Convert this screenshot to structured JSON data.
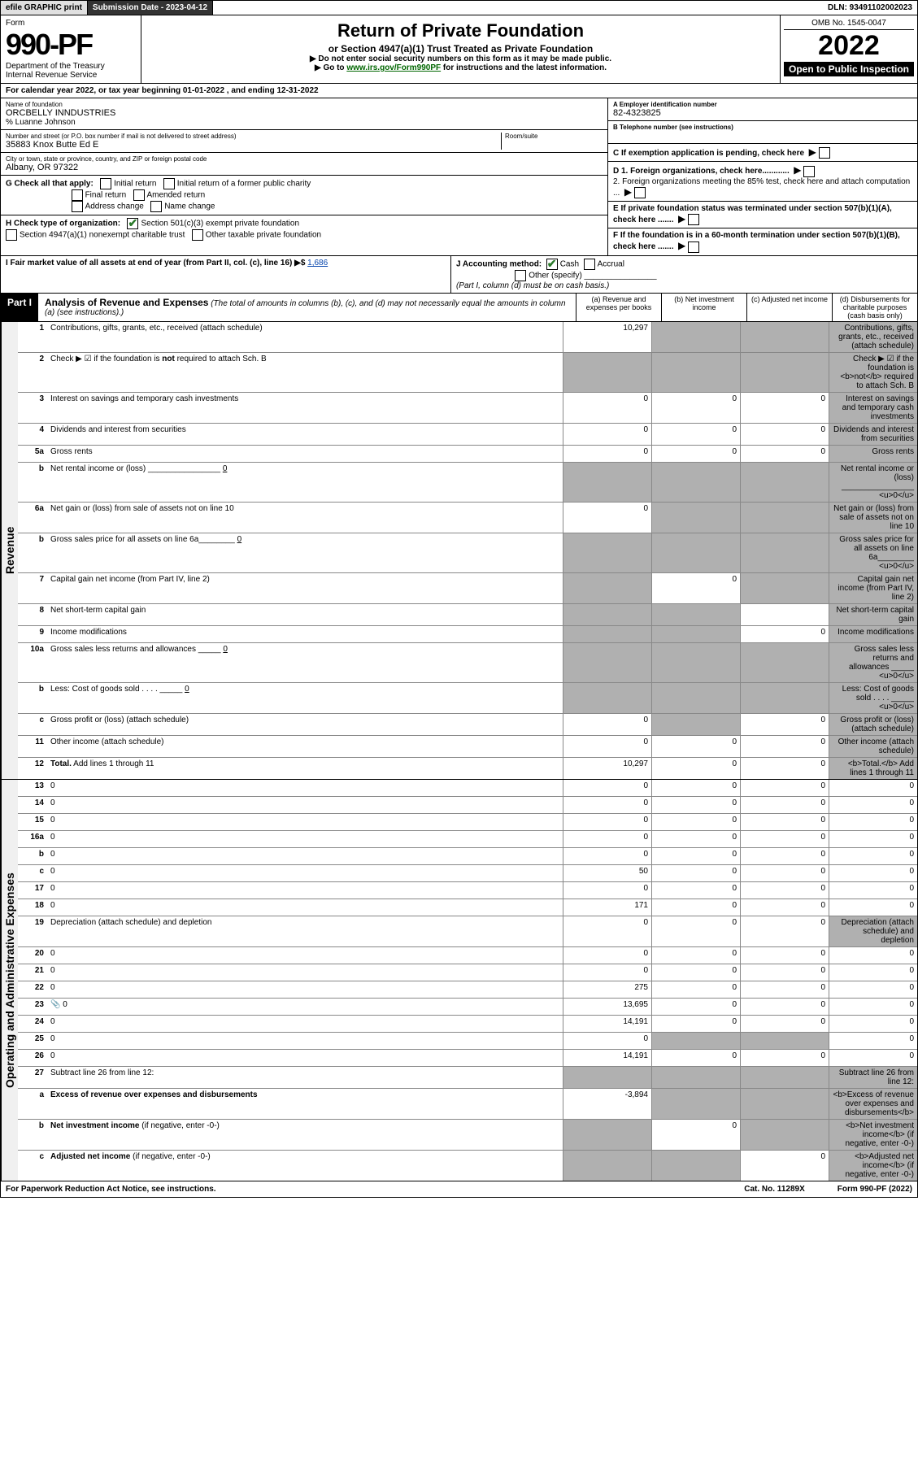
{
  "topbar": {
    "efile": "efile GRAPHIC print",
    "subdate_label": "Submission Date - ",
    "subdate": "2023-04-12",
    "dln": "DLN: 93491102002023"
  },
  "header": {
    "form_label": "Form",
    "form_no": "990-PF",
    "dept": "Department of the Treasury",
    "irs": "Internal Revenue Service",
    "title": "Return of Private Foundation",
    "subtitle": "or Section 4947(a)(1) Trust Treated as Private Foundation",
    "note1": "▶ Do not enter social security numbers on this form as it may be made public.",
    "note2_pre": "▶ Go to ",
    "note2_link": "www.irs.gov/Form990PF",
    "note2_post": " for instructions and the latest information.",
    "omb": "OMB No. 1545-0047",
    "year": "2022",
    "open": "Open to Public Inspection"
  },
  "calyear": "For calendar year 2022, or tax year beginning 01-01-2022             , and ending 12-31-2022",
  "id": {
    "name_lbl": "Name of foundation",
    "name": "ORCBELLY INNDUSTRIES",
    "care": "% Luanne Johnson",
    "addr_lbl": "Number and street (or P.O. box number if mail is not delivered to street address)",
    "addr": "35883 Knox Butte Ed E",
    "room_lbl": "Room/suite",
    "room": "",
    "city_lbl": "City or town, state or province, country, and ZIP or foreign postal code",
    "city": "Albany, OR  97322",
    "ein_lbl": "A Employer identification number",
    "ein": "82-4323825",
    "tel_lbl": "B Telephone number (see instructions)",
    "tel": "",
    "c": "C If exemption application is pending, check here",
    "d1": "D 1. Foreign organizations, check here............",
    "d2": "2. Foreign organizations meeting the 85% test, check here and attach computation ...",
    "e": "E  If private foundation status was terminated under section 507(b)(1)(A), check here .......",
    "f": "F  If the foundation is in a 60-month termination under section 507(b)(1)(B), check here ......."
  },
  "g": {
    "label": "G Check all that apply:",
    "initial": "Initial return",
    "initial_former": "Initial return of a former public charity",
    "final": "Final return",
    "amended": "Amended return",
    "addrchg": "Address change",
    "namechg": "Name change"
  },
  "h": {
    "label": "H Check type of organization:",
    "c3": "Section 501(c)(3) exempt private foundation",
    "c4947": "Section 4947(a)(1) nonexempt charitable trust",
    "other": "Other taxable private foundation"
  },
  "i": {
    "label": "I Fair market value of all assets at end of year (from Part II, col. (c), line 16) ▶$ ",
    "val": "1,686"
  },
  "j": {
    "label": "J Accounting method:",
    "cash": "Cash",
    "accrual": "Accrual",
    "other": "Other (specify)",
    "note": "(Part I, column (d) must be on cash basis.)"
  },
  "part1": {
    "tag": "Part I",
    "title": "Analysis of Revenue and Expenses",
    "note": "(The total of amounts in columns (b), (c), and (d) may not necessarily equal the amounts in column (a) (see instructions).)",
    "cola": "(a)   Revenue and expenses per books",
    "colb": "(b)   Net investment income",
    "colc": "(c)   Adjusted net income",
    "cold": "(d)   Disbursements for charitable purposes (cash basis only)"
  },
  "rev": [
    {
      "n": "1",
      "d": "Contributions, gifts, grants, etc., received (attach schedule)",
      "a": "10,297",
      "grey": [
        "b",
        "c",
        "d"
      ]
    },
    {
      "n": "2",
      "d": "Check ▶ ☑ if the foundation is <b>not</b> required to attach Sch. B",
      "grey": [
        "a",
        "b",
        "c",
        "d"
      ]
    },
    {
      "n": "3",
      "d": "Interest on savings and temporary cash investments",
      "a": "0",
      "b": "0",
      "c": "0",
      "grey": [
        "d"
      ]
    },
    {
      "n": "4",
      "d": "Dividends and interest from securities",
      "a": "0",
      "b": "0",
      "c": "0",
      "grey": [
        "d"
      ]
    },
    {
      "n": "5a",
      "d": "Gross rents",
      "a": "0",
      "b": "0",
      "c": "0",
      "grey": [
        "d"
      ]
    },
    {
      "n": "b",
      "d": "Net rental income or (loss) ________________ <u>0</u>",
      "grey": [
        "a",
        "b",
        "c",
        "d"
      ]
    },
    {
      "n": "6a",
      "d": "Net gain or (loss) from sale of assets not on line 10",
      "a": "0",
      "grey": [
        "b",
        "c",
        "d"
      ]
    },
    {
      "n": "b",
      "d": "Gross sales price for all assets on line 6a________ <u>0</u>",
      "grey": [
        "a",
        "b",
        "c",
        "d"
      ]
    },
    {
      "n": "7",
      "d": "Capital gain net income (from Part IV, line 2)",
      "b": "0",
      "grey": [
        "a",
        "c",
        "d"
      ]
    },
    {
      "n": "8",
      "d": "Net short-term capital gain",
      "grey": [
        "a",
        "b",
        "d"
      ]
    },
    {
      "n": "9",
      "d": "Income modifications",
      "c": "0",
      "grey": [
        "a",
        "b",
        "d"
      ]
    },
    {
      "n": "10a",
      "d": "Gross sales less returns and allowances _____ <u>0</u>",
      "grey": [
        "a",
        "b",
        "c",
        "d"
      ]
    },
    {
      "n": "b",
      "d": "Less: Cost of goods sold  .  .  .  . _____ <u>0</u>",
      "grey": [
        "a",
        "b",
        "c",
        "d"
      ]
    },
    {
      "n": "c",
      "d": "Gross profit or (loss) (attach schedule)",
      "a": "0",
      "c": "0",
      "grey": [
        "b",
        "d"
      ]
    },
    {
      "n": "11",
      "d": "Other income (attach schedule)",
      "a": "0",
      "b": "0",
      "c": "0",
      "grey": [
        "d"
      ]
    },
    {
      "n": "12",
      "d": "<b>Total.</b> Add lines 1 through 11",
      "a": "10,297",
      "b": "0",
      "c": "0",
      "grey": [
        "d"
      ]
    }
  ],
  "exp": [
    {
      "n": "13",
      "d": "0",
      "a": "0",
      "b": "0",
      "c": "0"
    },
    {
      "n": "14",
      "d": "0",
      "a": "0",
      "b": "0",
      "c": "0"
    },
    {
      "n": "15",
      "d": "0",
      "a": "0",
      "b": "0",
      "c": "0"
    },
    {
      "n": "16a",
      "d": "0",
      "a": "0",
      "b": "0",
      "c": "0"
    },
    {
      "n": "b",
      "d": "0",
      "a": "0",
      "b": "0",
      "c": "0"
    },
    {
      "n": "c",
      "d": "0",
      "a": "50",
      "b": "0",
      "c": "0"
    },
    {
      "n": "17",
      "d": "0",
      "a": "0",
      "b": "0",
      "c": "0"
    },
    {
      "n": "18",
      "d": "0",
      "a": "171",
      "b": "0",
      "c": "0"
    },
    {
      "n": "19",
      "d": "Depreciation (attach schedule) and depletion",
      "a": "0",
      "b": "0",
      "c": "0",
      "grey": [
        "d"
      ]
    },
    {
      "n": "20",
      "d": "0",
      "a": "0",
      "b": "0",
      "c": "0"
    },
    {
      "n": "21",
      "d": "0",
      "a": "0",
      "b": "0",
      "c": "0"
    },
    {
      "n": "22",
      "d": "0",
      "a": "275",
      "b": "0",
      "c": "0"
    },
    {
      "n": "23",
      "d": "0",
      "a": "13,695",
      "b": "0",
      "c": "0",
      "icon": true
    },
    {
      "n": "24",
      "d": "0",
      "a": "14,191",
      "b": "0",
      "c": "0"
    },
    {
      "n": "25",
      "d": "0",
      "a": "0",
      "grey": [
        "b",
        "c"
      ]
    },
    {
      "n": "26",
      "d": "0",
      "a": "14,191",
      "b": "0",
      "c": "0"
    },
    {
      "n": "27",
      "d": "Subtract line 26 from line 12:",
      "grey": [
        "a",
        "b",
        "c",
        "d"
      ]
    },
    {
      "n": "a",
      "d": "<b>Excess of revenue over expenses and disbursements</b>",
      "a": "-3,894",
      "grey": [
        "b",
        "c",
        "d"
      ]
    },
    {
      "n": "b",
      "d": "<b>Net investment income</b> (if negative, enter -0-)",
      "b": "0",
      "grey": [
        "a",
        "c",
        "d"
      ]
    },
    {
      "n": "c",
      "d": "<b>Adjusted net income</b> (if negative, enter -0-)",
      "c": "0",
      "grey": [
        "a",
        "b",
        "d"
      ]
    }
  ],
  "footer": {
    "left": "For Paperwork Reduction Act Notice, see instructions.",
    "mid": "Cat. No. 11289X",
    "right": "Form 990-PF (2022)"
  }
}
